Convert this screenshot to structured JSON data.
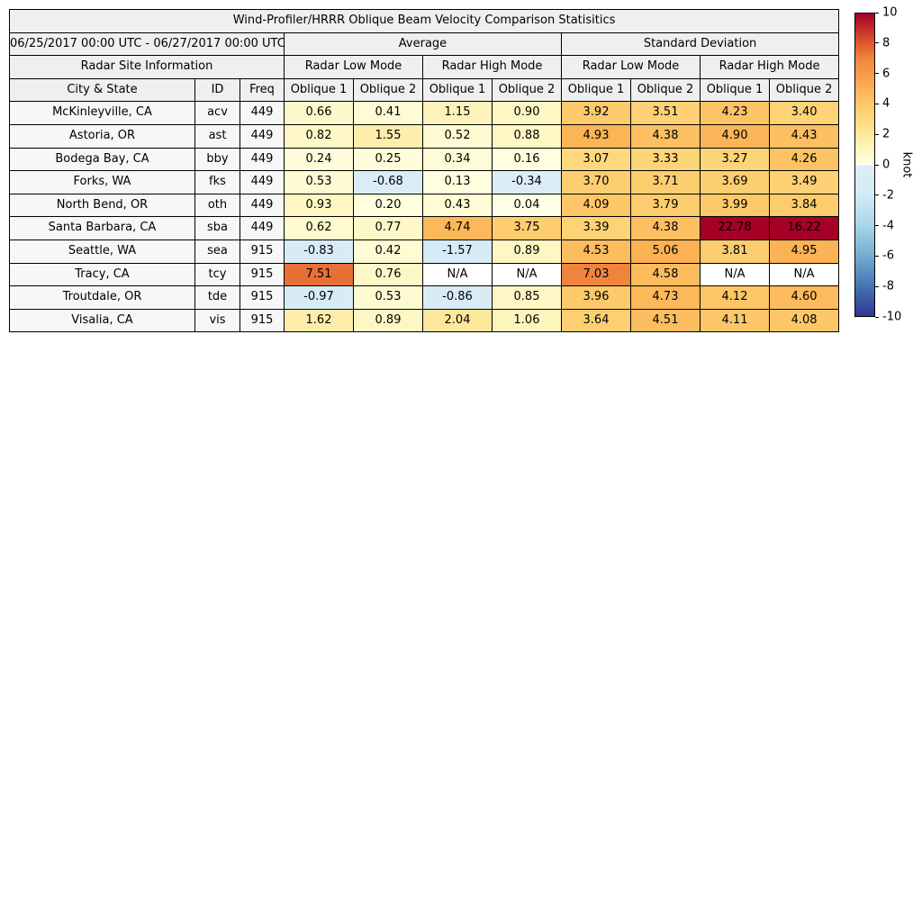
{
  "figure": {
    "title": "Wind-Profiler/HRRR Oblique Beam Velocity Comparison Statisitics"
  },
  "table": {
    "date_range": "06/25/2017 00:00 UTC - 06/27/2017 00:00 UTC",
    "section_headers": {
      "average": "Average",
      "std": "Standard Deviation"
    },
    "site_info": "Radar Site Information",
    "mode_headers": [
      "Radar Low Mode",
      "Radar High Mode",
      "Radar Low Mode",
      "Radar High Mode"
    ],
    "column_headers": [
      "City & State",
      "ID",
      "Freq",
      "Oblique 1",
      "Oblique 2",
      "Oblique 1",
      "Oblique 2",
      "Oblique 1",
      "Oblique 2",
      "Oblique 1",
      "Oblique 2"
    ],
    "na_text": "N/A"
  },
  "colorbar": {
    "label": "knot",
    "ticks": [
      "10",
      "8",
      "6",
      "4",
      "2",
      "0",
      "-2",
      "-4",
      "-6",
      "-8",
      "-10"
    ],
    "vmin": -10,
    "vmax": 10,
    "stops": [
      [
        -10,
        "#313695"
      ],
      [
        -8,
        "#4575b4"
      ],
      [
        -6,
        "#74add1"
      ],
      [
        -4,
        "#a8d6e8"
      ],
      [
        -2,
        "#d3eaf5"
      ],
      [
        -0.05,
        "#ddeef7"
      ],
      [
        0,
        "#ffffff"
      ],
      [
        0.05,
        "#ffffe2"
      ],
      [
        1,
        "#fef6c0"
      ],
      [
        2,
        "#fee89c"
      ],
      [
        3,
        "#fdd97e"
      ],
      [
        4,
        "#fdc96a"
      ],
      [
        5,
        "#fbb255"
      ],
      [
        6,
        "#f89a49"
      ],
      [
        7,
        "#f1853c"
      ],
      [
        8,
        "#e0592f"
      ],
      [
        10,
        "#a50026"
      ]
    ]
  },
  "chart_data": {
    "type": "heatmap",
    "title": "Wind-Profiler/HRRR Oblique Beam Velocity Comparison Statisitics",
    "subtitle": "06/25/2017 00:00 UTC - 06/27/2017 00:00 UTC",
    "unit": "knot",
    "value_range": [
      -10,
      10
    ],
    "metric_columns": [
      "Average Radar Low Mode Oblique 1",
      "Average Radar Low Mode Oblique 2",
      "Average Radar High Mode Oblique 1",
      "Average Radar High Mode Oblique 2",
      "Standard Deviation Radar Low Mode Oblique 1",
      "Standard Deviation Radar Low Mode Oblique 2",
      "Standard Deviation Radar High Mode Oblique 1",
      "Standard Deviation Radar High Mode Oblique 2"
    ],
    "rows": [
      {
        "city": "McKinleyville, CA",
        "id": "acv",
        "freq": "449",
        "avg": [
          0.66,
          0.41,
          1.15,
          0.9
        ],
        "std": [
          3.92,
          3.51,
          4.23,
          3.4
        ]
      },
      {
        "city": "Astoria, OR",
        "id": "ast",
        "freq": "449",
        "avg": [
          0.82,
          1.55,
          0.52,
          0.88
        ],
        "std": [
          4.93,
          4.38,
          4.9,
          4.43
        ]
      },
      {
        "city": "Bodega Bay, CA",
        "id": "bby",
        "freq": "449",
        "avg": [
          0.24,
          0.25,
          0.34,
          0.16
        ],
        "std": [
          3.07,
          3.33,
          3.27,
          4.26
        ]
      },
      {
        "city": "Forks, WA",
        "id": "fks",
        "freq": "449",
        "avg": [
          0.53,
          -0.68,
          0.13,
          -0.34
        ],
        "std": [
          3.7,
          3.71,
          3.69,
          3.49
        ]
      },
      {
        "city": "North Bend, OR",
        "id": "oth",
        "freq": "449",
        "avg": [
          0.93,
          0.2,
          0.43,
          0.04
        ],
        "std": [
          4.09,
          3.79,
          3.99,
          3.84
        ]
      },
      {
        "city": "Santa Barbara, CA",
        "id": "sba",
        "freq": "449",
        "avg": [
          0.62,
          0.77,
          4.74,
          3.75
        ],
        "std": [
          3.39,
          4.38,
          22.78,
          16.22
        ]
      },
      {
        "city": "Seattle, WA",
        "id": "sea",
        "freq": "915",
        "avg": [
          -0.83,
          0.42,
          -1.57,
          0.89
        ],
        "std": [
          4.53,
          5.06,
          3.81,
          4.95
        ]
      },
      {
        "city": "Tracy, CA",
        "id": "tcy",
        "freq": "915",
        "avg": [
          7.51,
          0.76,
          "N/A",
          "N/A"
        ],
        "std": [
          7.03,
          4.58,
          "N/A",
          "N/A"
        ]
      },
      {
        "city": "Troutdale, OR",
        "id": "tde",
        "freq": "915",
        "avg": [
          -0.97,
          0.53,
          -0.86,
          0.85
        ],
        "std": [
          3.96,
          4.73,
          4.12,
          4.6
        ]
      },
      {
        "city": "Visalia, CA",
        "id": "vis",
        "freq": "915",
        "avg": [
          1.62,
          0.89,
          2.04,
          1.06
        ],
        "std": [
          3.64,
          4.51,
          4.11,
          4.08
        ]
      }
    ]
  }
}
